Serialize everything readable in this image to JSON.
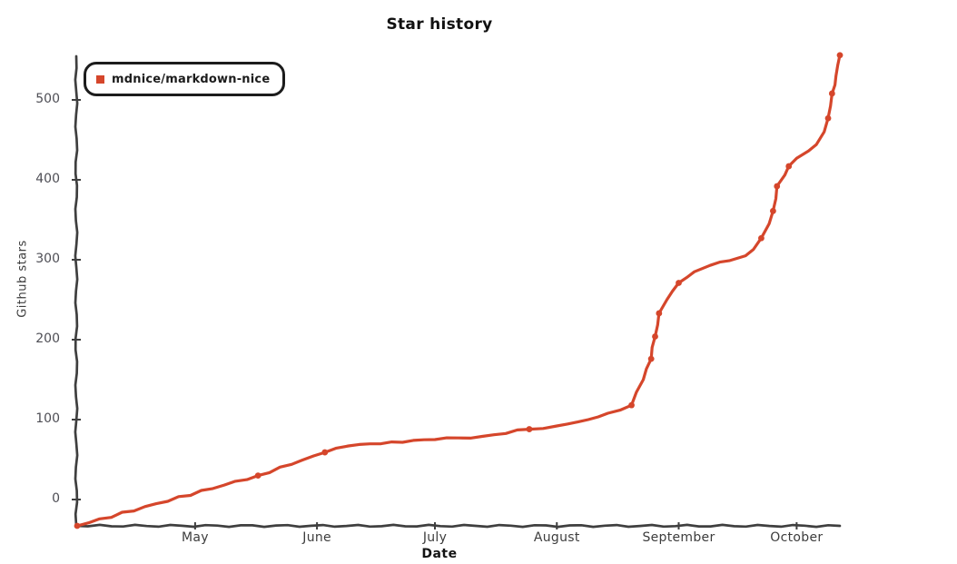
{
  "title": "Star history",
  "colors": {
    "line": "#d5462b",
    "axis": "#3f3f3f",
    "y_tick_label": "#4e4e55",
    "x_tick_label": "#3d3d3d",
    "title_text": "#111111",
    "background": "#ffffff"
  },
  "legend": {
    "series_label": "mdnice/markdown-nice",
    "marker_color": "#d5462b"
  },
  "chart_data": {
    "type": "line",
    "title": "Star history",
    "xlabel": "Date",
    "ylabel": "Github stars",
    "legend_position": "top-left",
    "grid": false,
    "style": "xkcd-handdrawn",
    "y_ticks": [
      0,
      100,
      200,
      300,
      400,
      500
    ],
    "ylim": [
      -33,
      590
    ],
    "x_ticks": [
      {
        "label": "May",
        "day": 30
      },
      {
        "label": "June",
        "day": 61
      },
      {
        "label": "July",
        "day": 91
      },
      {
        "label": "August",
        "day": 122
      },
      {
        "label": "September",
        "day": 153
      },
      {
        "label": "October",
        "day": 183
      }
    ],
    "x_day_zero": "Apr 1",
    "start_at_origin": true,
    "series": [
      {
        "name": "mdnice/markdown-nice",
        "color": "#d5462b",
        "points": [
          {
            "date": "Apr 1",
            "day": 0,
            "stars": 0,
            "dot": true
          },
          {
            "date": "May 17",
            "day": 46,
            "stars": 30,
            "dot": true
          },
          {
            "date": "Jun 3",
            "day": 63,
            "stars": 59,
            "dot": true
          },
          {
            "date": "Jun 9",
            "day": 69,
            "stars": 67,
            "dot": false
          },
          {
            "date": "Jun 20",
            "day": 80,
            "stars": 72,
            "dot": false
          },
          {
            "date": "Jul 1",
            "day": 91,
            "stars": 75,
            "dot": false
          },
          {
            "date": "Jul 13",
            "day": 103,
            "stars": 79,
            "dot": false
          },
          {
            "date": "Jul 25",
            "day": 115,
            "stars": 88,
            "dot": true
          },
          {
            "date": "Aug 1",
            "day": 122,
            "stars": 92,
            "dot": false
          },
          {
            "date": "Aug 9",
            "day": 130,
            "stars": 100,
            "dot": false
          },
          {
            "date": "Aug 14",
            "day": 135,
            "stars": 108,
            "dot": false
          },
          {
            "date": "Aug 20",
            "day": 141,
            "stars": 118,
            "dot": true
          },
          {
            "date": "Aug 23",
            "day": 144,
            "stars": 150,
            "dot": false
          },
          {
            "date": "Aug 25",
            "day": 146,
            "stars": 176,
            "dot": true
          },
          {
            "date": "Aug 26",
            "day": 147,
            "stars": 204,
            "dot": true
          },
          {
            "date": "Aug 27",
            "day": 148,
            "stars": 233,
            "dot": true
          },
          {
            "date": "Aug 29",
            "day": 150,
            "stars": 250,
            "dot": false
          },
          {
            "date": "Sep 1",
            "day": 153,
            "stars": 271,
            "dot": true
          },
          {
            "date": "Sep 5",
            "day": 157,
            "stars": 285,
            "dot": false
          },
          {
            "date": "Sep 9",
            "day": 161,
            "stars": 293,
            "dot": false
          },
          {
            "date": "Sep 14",
            "day": 166,
            "stars": 299,
            "dot": false
          },
          {
            "date": "Sep 18",
            "day": 170,
            "stars": 305,
            "dot": false
          },
          {
            "date": "Sep 20",
            "day": 172,
            "stars": 313,
            "dot": false
          },
          {
            "date": "Sep 22",
            "day": 174,
            "stars": 327,
            "dot": true
          },
          {
            "date": "Sep 24",
            "day": 176,
            "stars": 345,
            "dot": false
          },
          {
            "date": "Sep 25",
            "day": 177,
            "stars": 361,
            "dot": true
          },
          {
            "date": "Sep 26",
            "day": 178,
            "stars": 392,
            "dot": true
          },
          {
            "date": "Sep 28",
            "day": 180,
            "stars": 406,
            "dot": false
          },
          {
            "date": "Sep 29",
            "day": 181,
            "stars": 417,
            "dot": true
          },
          {
            "date": "Oct 1",
            "day": 183,
            "stars": 427,
            "dot": false
          },
          {
            "date": "Oct 4",
            "day": 186,
            "stars": 436,
            "dot": false
          },
          {
            "date": "Oct 6",
            "day": 188,
            "stars": 444,
            "dot": false
          },
          {
            "date": "Oct 8",
            "day": 190,
            "stars": 460,
            "dot": false
          },
          {
            "date": "Oct 9",
            "day": 191,
            "stars": 477,
            "dot": true
          },
          {
            "date": "Oct 10",
            "day": 192,
            "stars": 508,
            "dot": true
          },
          {
            "date": "Oct 11",
            "day": 193,
            "stars": 530,
            "dot": false
          },
          {
            "date": "Oct 12",
            "day": 194,
            "stars": 556,
            "dot": true
          }
        ]
      }
    ]
  }
}
